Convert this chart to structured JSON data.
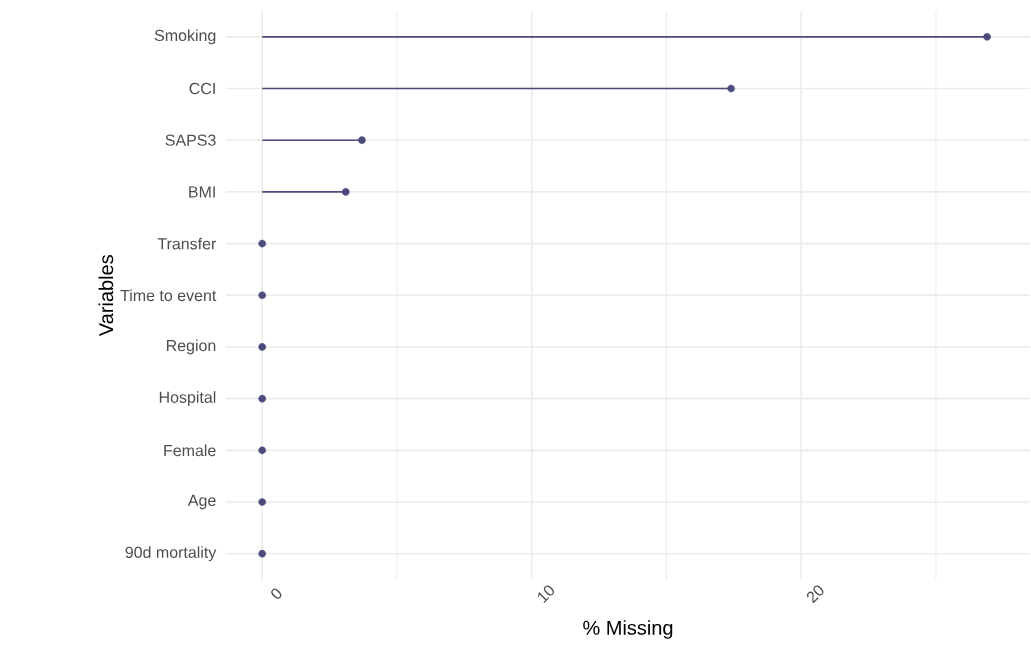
{
  "chart_data": {
    "type": "lollipop",
    "orientation": "horizontal",
    "xlabel": "% Missing",
    "ylabel": "Variables",
    "categories": [
      "Smoking",
      "CCI",
      "SAPS3",
      "BMI",
      "Transfer",
      "Time to event",
      "Region",
      "Hospital",
      "Female",
      "Age",
      "90d mortality"
    ],
    "values": [
      26.9,
      17.4,
      3.7,
      3.1,
      0,
      0,
      0,
      0,
      0,
      0,
      0
    ],
    "color": "#4b4b7c",
    "marker": "circle",
    "grid": true,
    "xlim": [
      -1.35,
      28.5
    ],
    "xticks": [
      0,
      {
        "value": 5,
        "label": null
      },
      10,
      {
        "value": 15,
        "label": null
      },
      20,
      {
        "value": 25,
        "label": null
      }
    ]
  }
}
